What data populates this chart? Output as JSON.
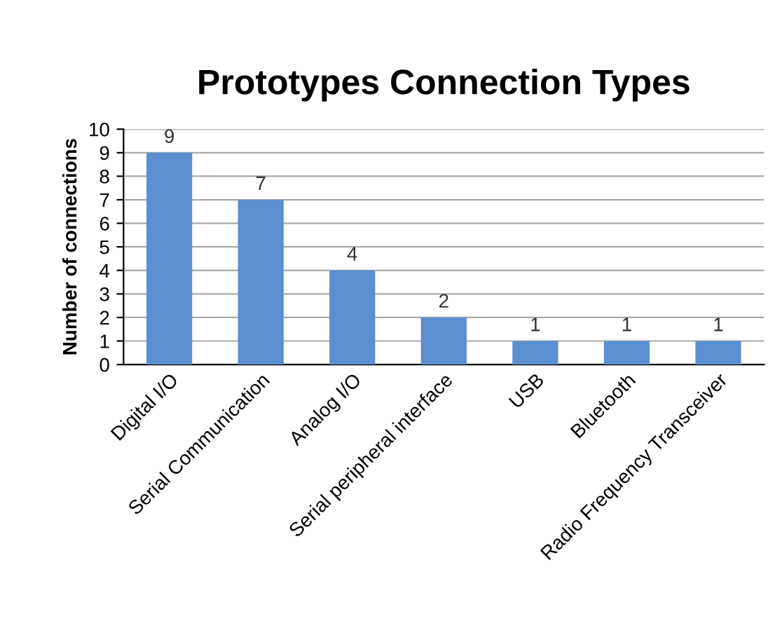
{
  "chart_data": {
    "type": "bar",
    "title": "Prototypes Connection Types",
    "ylabel": "Number of connections",
    "categories": [
      "Digital I/O",
      "Serial Communication",
      "Analog I/O",
      "Serial peripheral interface",
      "USB",
      "Bluetooth",
      "Radio Frequency Transceiver"
    ],
    "values": [
      9,
      7,
      4,
      2,
      1,
      1,
      1
    ],
    "color": "#5b8fd0",
    "ylim": [
      0,
      10
    ],
    "yticks": [
      0,
      1,
      2,
      3,
      4,
      5,
      6,
      7,
      8,
      9,
      10
    ],
    "grid": "y",
    "data_labels": true,
    "legend": false
  }
}
